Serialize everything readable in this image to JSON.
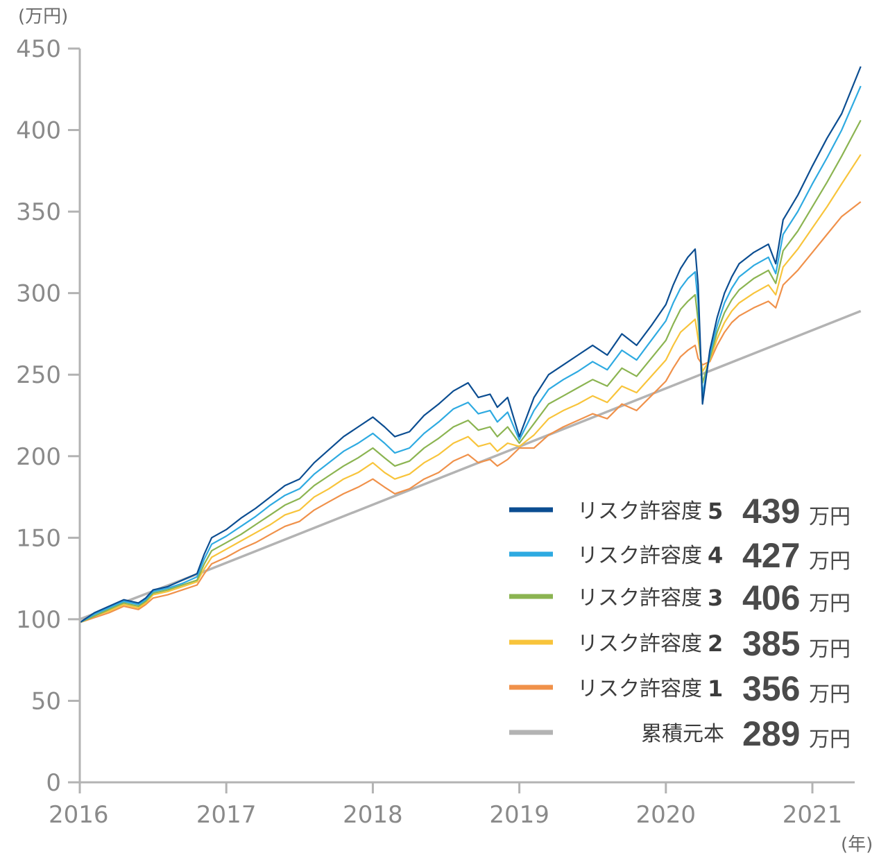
{
  "chart_data": {
    "type": "line",
    "y_unit": "(万円)",
    "x_unit": "(年)",
    "ylim": [
      0,
      450
    ],
    "yticks": [
      "0",
      "50",
      "100",
      "150",
      "200",
      "250",
      "300",
      "350",
      "400",
      "450"
    ],
    "xticks": [
      "2016",
      "2017",
      "2018",
      "2019",
      "2020",
      "2021"
    ],
    "xlim": [
      2016.0,
      2021.33
    ],
    "grid": false,
    "legend_position": "bottom-right",
    "series": [
      {
        "label": "リスク許容度",
        "level": "5",
        "final_value": "439",
        "unit": "万円",
        "color": "#0b4d91",
        "x": [
          2016.0,
          2016.1,
          2016.2,
          2016.3,
          2016.4,
          2016.45,
          2016.5,
          2016.6,
          2016.7,
          2016.8,
          2016.85,
          2016.9,
          2017.0,
          2017.1,
          2017.2,
          2017.3,
          2017.4,
          2017.5,
          2017.6,
          2017.7,
          2017.8,
          2017.9,
          2018.0,
          2018.08,
          2018.15,
          2018.25,
          2018.35,
          2018.45,
          2018.55,
          2018.65,
          2018.72,
          2018.8,
          2018.85,
          2018.92,
          2019.0,
          2019.1,
          2019.2,
          2019.3,
          2019.4,
          2019.5,
          2019.6,
          2019.7,
          2019.8,
          2019.9,
          2020.0,
          2020.05,
          2020.1,
          2020.15,
          2020.2,
          2020.22,
          2020.25,
          2020.3,
          2020.35,
          2020.4,
          2020.45,
          2020.5,
          2020.6,
          2020.7,
          2020.75,
          2020.8,
          2020.9,
          2021.0,
          2021.1,
          2021.2,
          2021.33
        ],
        "y": [
          98,
          104,
          108,
          112,
          110,
          113,
          118,
          120,
          124,
          128,
          140,
          150,
          155,
          162,
          168,
          175,
          182,
          186,
          196,
          204,
          212,
          218,
          224,
          218,
          212,
          215,
          225,
          232,
          240,
          245,
          236,
          238,
          230,
          236,
          212,
          236,
          250,
          256,
          262,
          268,
          262,
          275,
          268,
          280,
          293,
          305,
          315,
          322,
          327,
          305,
          232,
          265,
          285,
          300,
          310,
          318,
          325,
          330,
          318,
          345,
          360,
          378,
          395,
          410,
          439
        ]
      },
      {
        "label": "リスク許容度",
        "level": "4",
        "final_value": "427",
        "unit": "万円",
        "color": "#2eaae1",
        "x": [
          2016.0,
          2016.1,
          2016.2,
          2016.3,
          2016.4,
          2016.45,
          2016.5,
          2016.6,
          2016.7,
          2016.8,
          2016.85,
          2016.9,
          2017.0,
          2017.1,
          2017.2,
          2017.3,
          2017.4,
          2017.5,
          2017.6,
          2017.7,
          2017.8,
          2017.9,
          2018.0,
          2018.08,
          2018.15,
          2018.25,
          2018.35,
          2018.45,
          2018.55,
          2018.65,
          2018.72,
          2018.8,
          2018.85,
          2018.92,
          2019.0,
          2019.1,
          2019.2,
          2019.3,
          2019.4,
          2019.5,
          2019.6,
          2019.7,
          2019.8,
          2019.9,
          2020.0,
          2020.05,
          2020.1,
          2020.15,
          2020.2,
          2020.22,
          2020.25,
          2020.3,
          2020.35,
          2020.4,
          2020.45,
          2020.5,
          2020.6,
          2020.7,
          2020.75,
          2020.8,
          2020.9,
          2021.0,
          2021.1,
          2021.2,
          2021.33
        ],
        "y": [
          98,
          103,
          107,
          111,
          109,
          112,
          117,
          119,
          122,
          126,
          137,
          146,
          151,
          157,
          163,
          170,
          176,
          180,
          189,
          196,
          203,
          208,
          214,
          208,
          202,
          205,
          214,
          221,
          229,
          233,
          226,
          228,
          221,
          227,
          210,
          228,
          241,
          247,
          252,
          258,
          253,
          265,
          259,
          271,
          283,
          294,
          303,
          309,
          313,
          294,
          238,
          262,
          280,
          294,
          303,
          310,
          317,
          322,
          312,
          336,
          350,
          367,
          383,
          400,
          427
        ]
      },
      {
        "label": "リスク許容度",
        "level": "3",
        "final_value": "406",
        "unit": "万円",
        "color": "#8bb451",
        "x": [
          2016.0,
          2016.1,
          2016.2,
          2016.3,
          2016.4,
          2016.45,
          2016.5,
          2016.6,
          2016.7,
          2016.8,
          2016.85,
          2016.9,
          2017.0,
          2017.1,
          2017.2,
          2017.3,
          2017.4,
          2017.5,
          2017.6,
          2017.7,
          2017.8,
          2017.9,
          2018.0,
          2018.08,
          2018.15,
          2018.25,
          2018.35,
          2018.45,
          2018.55,
          2018.65,
          2018.72,
          2018.8,
          2018.85,
          2018.92,
          2019.0,
          2019.1,
          2019.2,
          2019.3,
          2019.4,
          2019.5,
          2019.6,
          2019.7,
          2019.8,
          2019.9,
          2020.0,
          2020.05,
          2020.1,
          2020.15,
          2020.2,
          2020.22,
          2020.25,
          2020.3,
          2020.35,
          2020.4,
          2020.45,
          2020.5,
          2020.6,
          2020.7,
          2020.75,
          2020.8,
          2020.9,
          2021.0,
          2021.1,
          2021.2,
          2021.33
        ],
        "y": [
          98,
          102,
          106,
          110,
          108,
          111,
          116,
          118,
          121,
          124,
          134,
          142,
          147,
          152,
          158,
          164,
          170,
          174,
          182,
          188,
          194,
          199,
          205,
          199,
          194,
          197,
          205,
          211,
          218,
          222,
          216,
          218,
          212,
          218,
          208,
          220,
          232,
          237,
          242,
          247,
          243,
          254,
          249,
          260,
          271,
          281,
          290,
          295,
          299,
          283,
          245,
          260,
          276,
          288,
          296,
          302,
          309,
          314,
          306,
          326,
          338,
          353,
          368,
          384,
          406
        ]
      },
      {
        "label": "リスク許容度",
        "level": "2",
        "final_value": "385",
        "unit": "万円",
        "color": "#f8c43b",
        "x": [
          2016.0,
          2016.1,
          2016.2,
          2016.3,
          2016.4,
          2016.45,
          2016.5,
          2016.6,
          2016.7,
          2016.8,
          2016.85,
          2016.9,
          2017.0,
          2017.1,
          2017.2,
          2017.3,
          2017.4,
          2017.5,
          2017.6,
          2017.7,
          2017.8,
          2017.9,
          2018.0,
          2018.08,
          2018.15,
          2018.25,
          2018.35,
          2018.45,
          2018.55,
          2018.65,
          2018.72,
          2018.8,
          2018.85,
          2018.92,
          2019.0,
          2019.1,
          2019.2,
          2019.3,
          2019.4,
          2019.5,
          2019.6,
          2019.7,
          2019.8,
          2019.9,
          2020.0,
          2020.05,
          2020.1,
          2020.15,
          2020.2,
          2020.22,
          2020.25,
          2020.3,
          2020.35,
          2020.4,
          2020.45,
          2020.5,
          2020.6,
          2020.7,
          2020.75,
          2020.8,
          2020.9,
          2021.0,
          2021.1,
          2021.2,
          2021.33
        ],
        "y": [
          98,
          102,
          105,
          109,
          107,
          110,
          115,
          117,
          120,
          123,
          131,
          138,
          143,
          148,
          153,
          158,
          164,
          167,
          175,
          180,
          186,
          190,
          196,
          190,
          186,
          189,
          196,
          201,
          208,
          212,
          206,
          208,
          203,
          208,
          206,
          213,
          223,
          228,
          232,
          237,
          233,
          243,
          239,
          249,
          259,
          268,
          276,
          280,
          284,
          272,
          252,
          259,
          272,
          282,
          289,
          294,
          300,
          305,
          299,
          316,
          327,
          340,
          353,
          367,
          385
        ]
      },
      {
        "label": "リスク許容度",
        "level": "1",
        "final_value": "356",
        "unit": "万円",
        "color": "#f0914a",
        "x": [
          2016.0,
          2016.1,
          2016.2,
          2016.3,
          2016.4,
          2016.45,
          2016.5,
          2016.6,
          2016.7,
          2016.8,
          2016.85,
          2016.9,
          2017.0,
          2017.1,
          2017.2,
          2017.3,
          2017.4,
          2017.5,
          2017.6,
          2017.7,
          2017.8,
          2017.9,
          2018.0,
          2018.08,
          2018.15,
          2018.25,
          2018.35,
          2018.45,
          2018.55,
          2018.65,
          2018.72,
          2018.8,
          2018.85,
          2018.92,
          2019.0,
          2019.1,
          2019.2,
          2019.3,
          2019.4,
          2019.5,
          2019.6,
          2019.7,
          2019.8,
          2019.9,
          2020.0,
          2020.05,
          2020.1,
          2020.15,
          2020.2,
          2020.22,
          2020.25,
          2020.3,
          2020.35,
          2020.4,
          2020.45,
          2020.5,
          2020.6,
          2020.7,
          2020.75,
          2020.8,
          2020.9,
          2021.0,
          2021.1,
          2021.2,
          2021.33
        ],
        "y": [
          98,
          101,
          104,
          108,
          106,
          109,
          113,
          115,
          118,
          121,
          128,
          134,
          138,
          143,
          147,
          152,
          157,
          160,
          167,
          172,
          177,
          181,
          186,
          181,
          177,
          180,
          186,
          190,
          197,
          201,
          196,
          198,
          194,
          198,
          205,
          205,
          213,
          218,
          222,
          226,
          223,
          232,
          228,
          237,
          246,
          254,
          261,
          265,
          268,
          260,
          256,
          258,
          268,
          276,
          282,
          286,
          291,
          295,
          291,
          305,
          314,
          325,
          336,
          347,
          356
        ]
      },
      {
        "label": "累積元本",
        "level": "",
        "final_value": "289",
        "unit": "万円",
        "color": "#b3b3b3",
        "x": [
          2016.0,
          2016.87,
          2021.33
        ],
        "y": [
          100,
          130,
          289
        ]
      }
    ]
  }
}
